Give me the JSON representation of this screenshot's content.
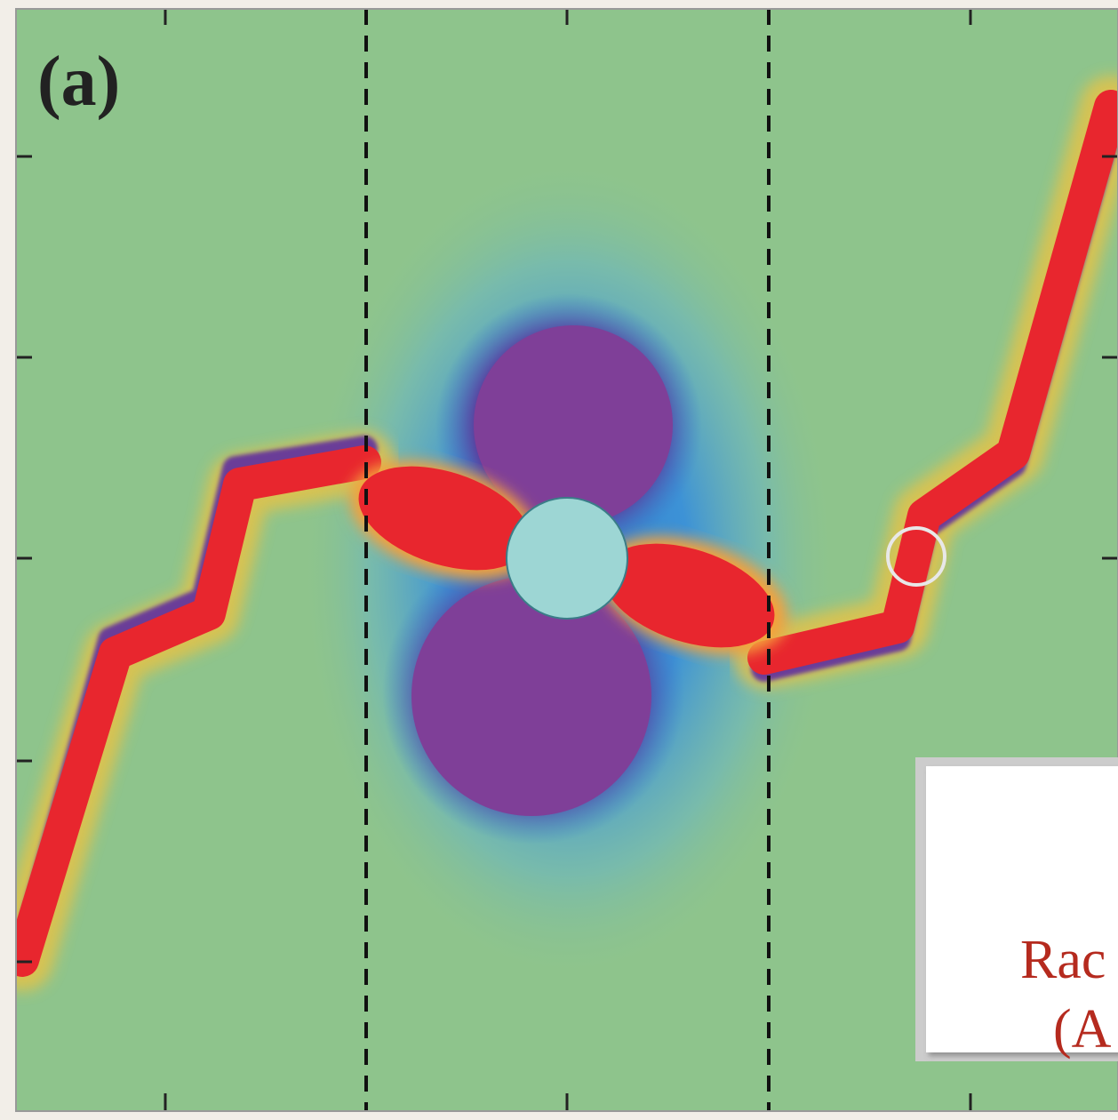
{
  "panel_label": "(a)",
  "box": {
    "line1": "Rac",
    "line2": "(A"
  }
}
